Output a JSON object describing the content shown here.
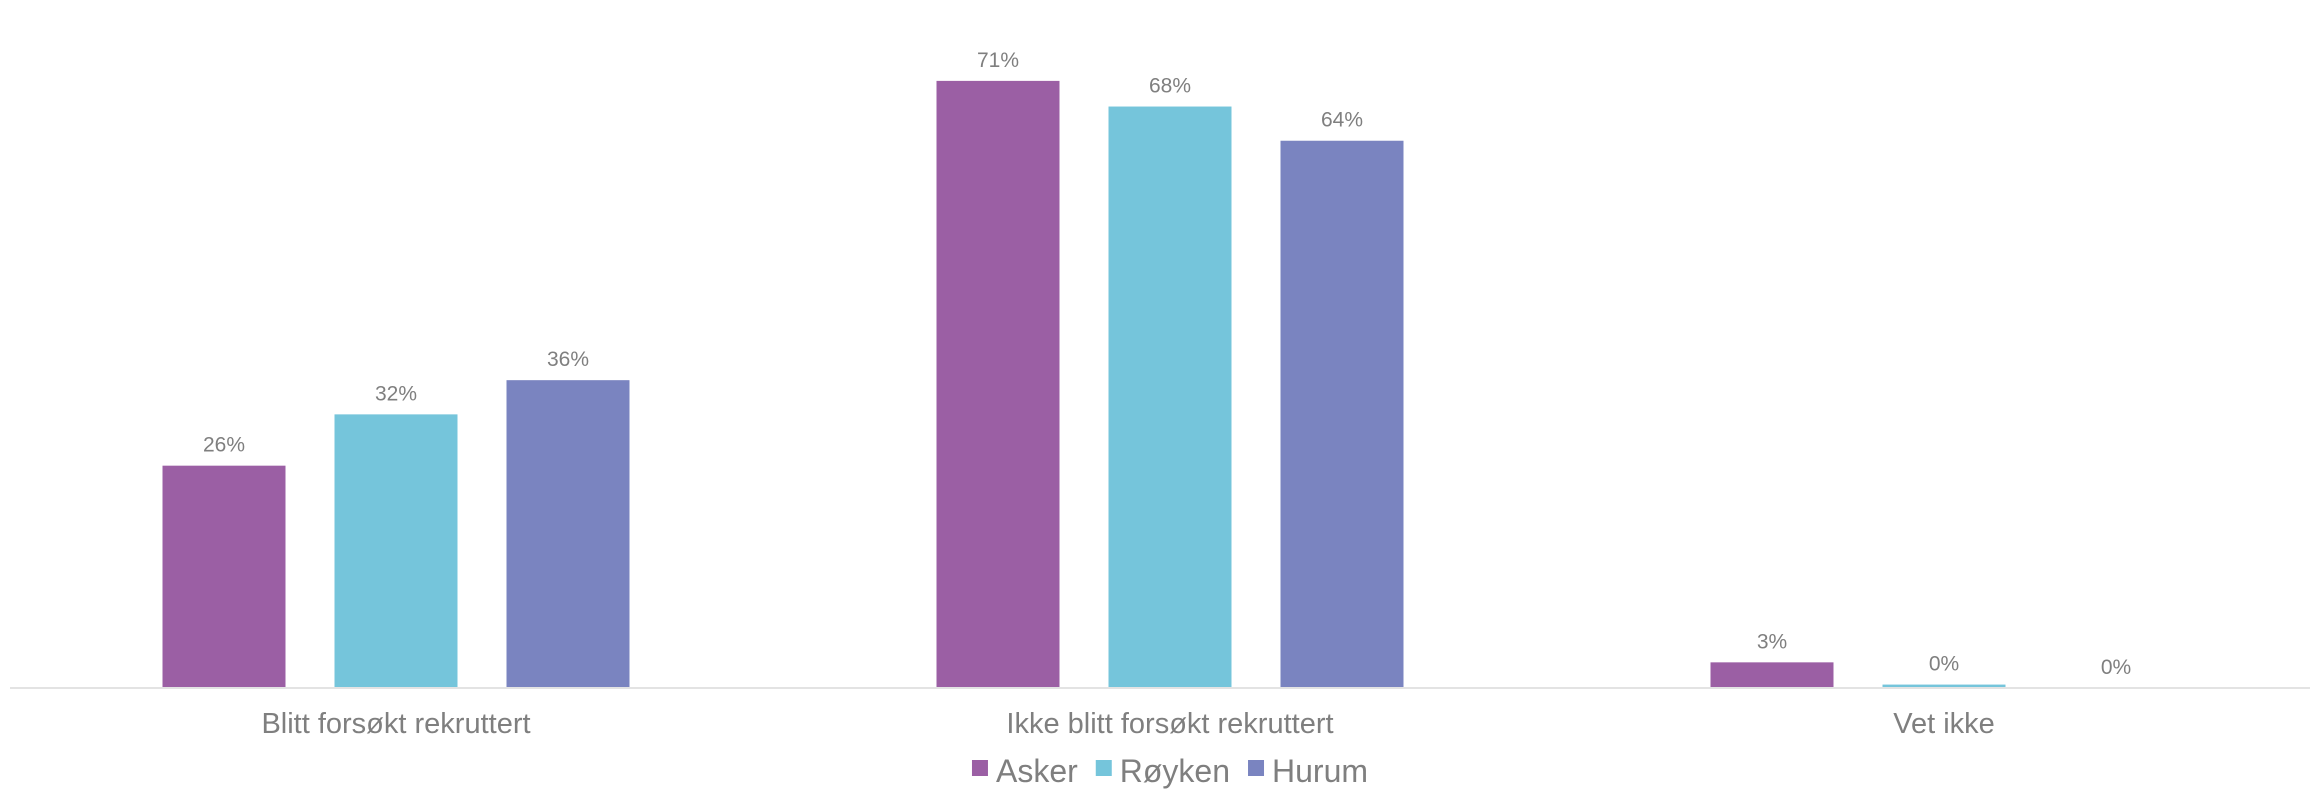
{
  "chart_data": {
    "type": "bar",
    "title": "",
    "xlabel": "",
    "ylabel": "",
    "categories": [
      "Blitt forsøkt rekruttert",
      "Ikke blitt forsøkt rekruttert",
      "Vet ikke"
    ],
    "series": [
      {
        "name": "Asker",
        "color": "#9b5fa4",
        "values": [
          26,
          71,
          3
        ]
      },
      {
        "name": "Røyken",
        "color": "#75c5db",
        "values": [
          32,
          68,
          0.4
        ]
      },
      {
        "name": "Hurum",
        "color": "#7a84c0",
        "values": [
          36,
          64,
          0
        ]
      }
    ],
    "data_labels": [
      [
        "26%",
        "71%",
        "3%"
      ],
      [
        "32%",
        "68%",
        "0%"
      ],
      [
        "36%",
        "64%",
        "0%"
      ]
    ],
    "ylim": [
      0,
      76.6
    ],
    "value_suffix": "%",
    "grid": false,
    "legend_position": "bottom",
    "baseline_color": "#e3e3e3"
  }
}
